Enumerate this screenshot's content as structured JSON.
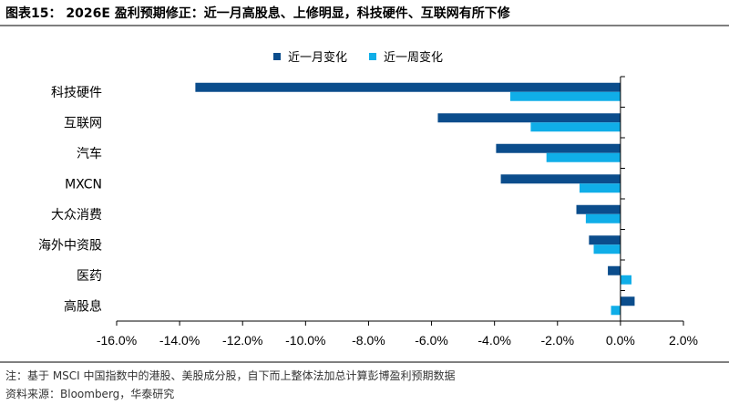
{
  "page_title": "图表15： 2026E 盈利预期修正：近一月高股息、上修明显，科技硬件、互联网有所下修",
  "footnotes": {
    "note": "注：基于 MSCI 中国指数中的港股、美股成分股，自下而上整体法加总计算彭博盈利预期数据",
    "source": "资料来源：Bloomberg，华泰研究"
  },
  "colors": {
    "month": "#0b4d8c",
    "week": "#10aee8",
    "axis": "#000000"
  },
  "chart_data": {
    "type": "bar",
    "orientation": "horizontal",
    "categories": [
      "科技硬件",
      "互联网",
      "汽车",
      "MXCN",
      "大众消费",
      "海外中资股",
      "医药",
      "高股息"
    ],
    "series": [
      {
        "name": "近一月变化",
        "values": [
          -13.5,
          -5.8,
          -3.95,
          -3.8,
          -1.4,
          -1.0,
          -0.4,
          0.45
        ]
      },
      {
        "name": "近一周变化",
        "values": [
          -3.5,
          -2.85,
          -2.35,
          -1.3,
          -1.1,
          -0.85,
          0.35,
          -0.3
        ]
      }
    ],
    "xlim": [
      -16.0,
      2.0
    ],
    "x_ticks": [
      -16.0,
      -14.0,
      -12.0,
      -10.0,
      -8.0,
      -6.0,
      -4.0,
      -2.0,
      0.0,
      2.0
    ],
    "x_tick_labels": [
      "-16.0%",
      "-14.0%",
      "-12.0%",
      "-10.0%",
      "-8.0%",
      "-6.0%",
      "-4.0%",
      "-2.0%",
      "0.0%",
      "2.0%"
    ],
    "legend_position": "top",
    "grid": false
  }
}
